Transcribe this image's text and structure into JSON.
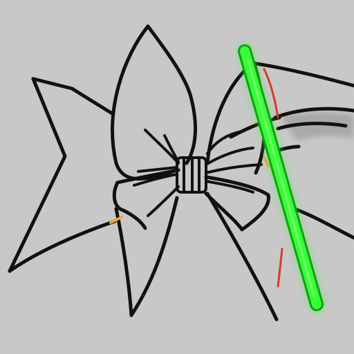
{
  "scene": {
    "background_color": "#c8c8c8",
    "outline_color": "#111111",
    "stick_glow_color": "#35ff35",
    "stick_edge_color": "#169b16",
    "accent_red": "#d33b2a",
    "accent_orange": "#f0a43b"
  }
}
